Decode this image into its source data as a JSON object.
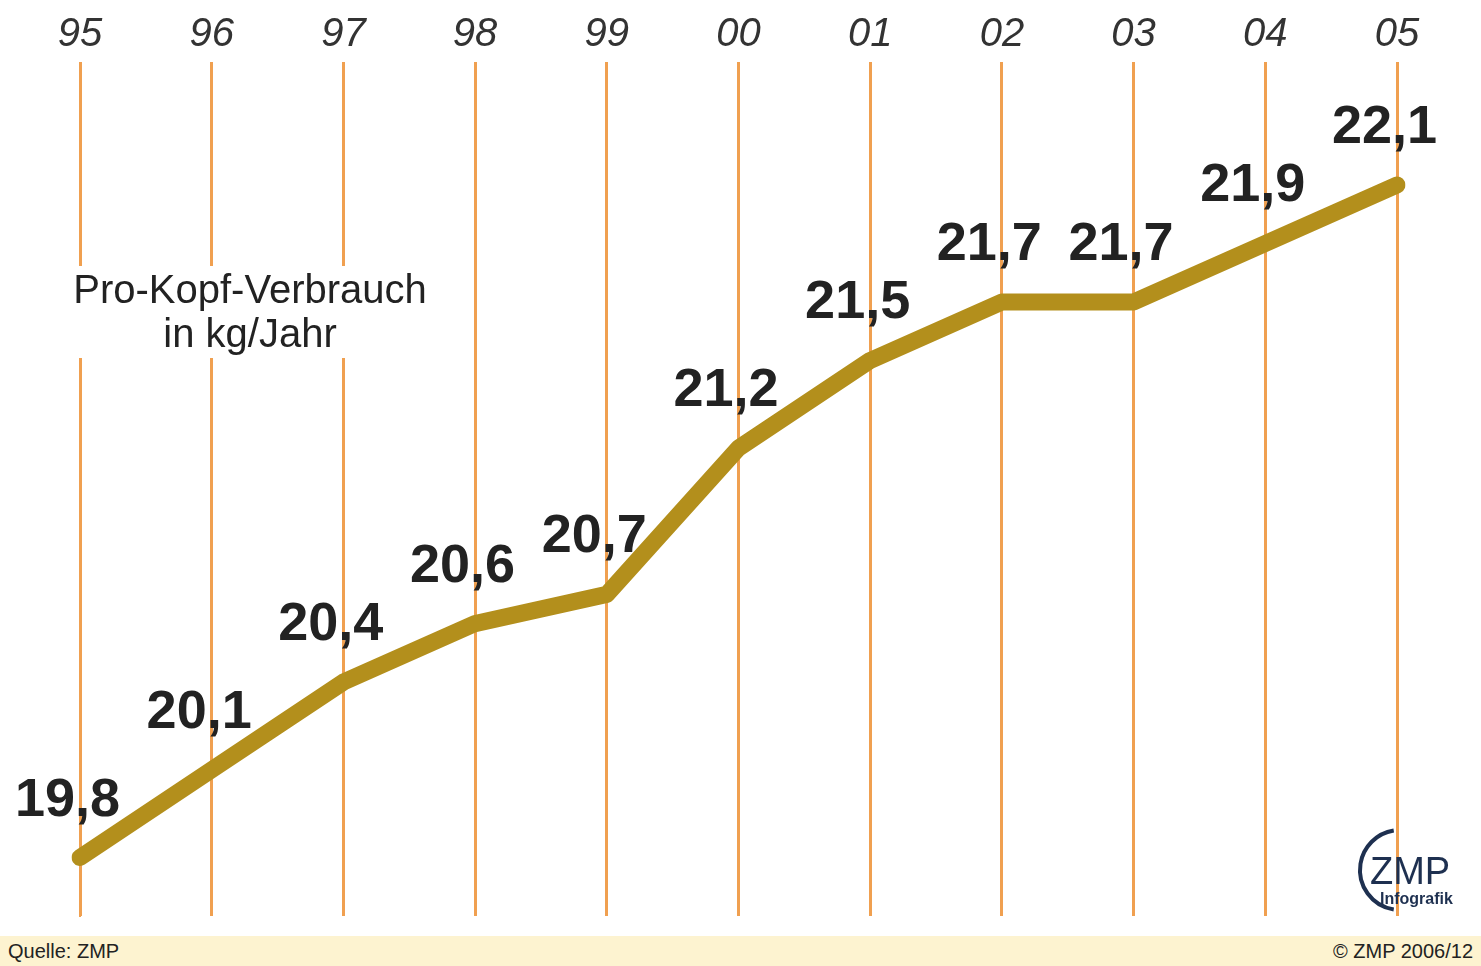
{
  "chart_data": {
    "type": "line",
    "title": "Pro-Kopf-Verbrauch",
    "ylabel": "in kg/Jahr",
    "categories": [
      "95",
      "96",
      "97",
      "98",
      "99",
      "00",
      "01",
      "02",
      "03",
      "04",
      "05"
    ],
    "values": [
      19.8,
      20.1,
      20.4,
      20.6,
      20.7,
      21.2,
      21.5,
      21.7,
      21.7,
      21.9,
      22.1
    ],
    "value_labels": [
      "19,8",
      "20,1",
      "20,4",
      "20,6",
      "20,7",
      "21,2",
      "21,5",
      "21,7",
      "21,7",
      "21,9",
      "22,1"
    ],
    "data_labels": true,
    "color": "#f2cf1a",
    "ylim": [
      19.6,
      22.5
    ],
    "tick_labels": "x",
    "grid": true,
    "source": "Quelle: ZMP",
    "copyright": "© ZMP 2006/12",
    "annotations": [
      "ZMP",
      "Infografik"
    ]
  }
}
